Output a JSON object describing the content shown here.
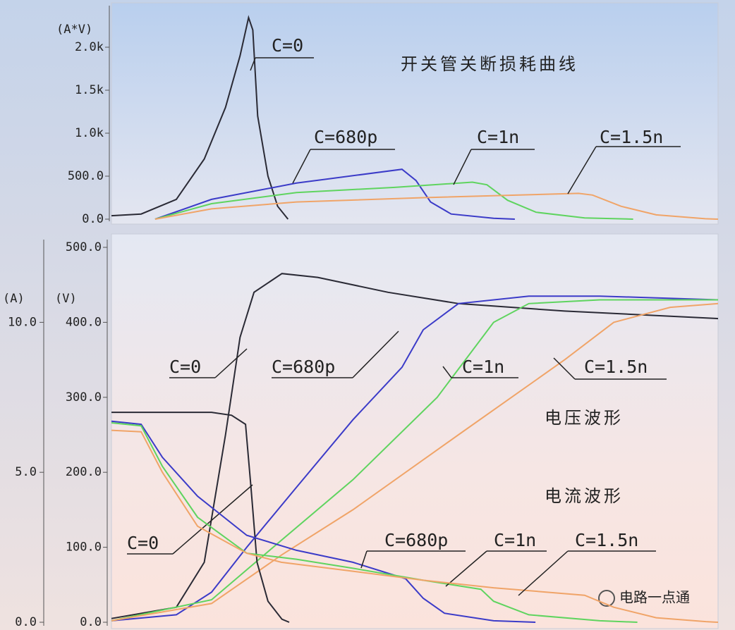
{
  "chart_data": [
    {
      "type": "line",
      "title": "开关管关断损耗曲线",
      "y_label": "(A*V)",
      "xlim": [
        0,
        100
      ],
      "ylim": [
        0,
        2500
      ],
      "yticks": [
        {
          "value": 0,
          "label": "0.0"
        },
        {
          "value": 500,
          "label": "500.0"
        },
        {
          "value": 1000,
          "label": "1.0k"
        },
        {
          "value": 1500,
          "label": "1.5k"
        },
        {
          "value": 2000,
          "label": "2.0k"
        }
      ],
      "series": [
        {
          "name": "C=0",
          "color": "#2a2a35",
          "x": [
            0,
            4.9,
            10.7,
            15.3,
            18.8,
            21.2,
            22.6,
            23.3,
            24.1,
            25.8,
            27.4,
            29.1
          ],
          "values": [
            40,
            60,
            230,
            700,
            1300,
            1900,
            2344,
            2200,
            1200,
            500,
            150,
            0
          ]
        },
        {
          "name": "C=680p",
          "color": "#3b3bc8",
          "x": [
            7.2,
            16.5,
            30.5,
            47.9,
            50.2,
            52.6,
            56,
            63,
            66.5
          ],
          "values": [
            0,
            230,
            420,
            580,
            450,
            200,
            60,
            10,
            0
          ]
        },
        {
          "name": "C=1n",
          "color": "#5fd45f",
          "x": [
            7.2,
            16.5,
            30.5,
            46.7,
            59.5,
            61.9,
            65.3,
            70,
            78,
            86
          ],
          "values": [
            0,
            180,
            310,
            370,
            430,
            400,
            220,
            80,
            15,
            0
          ]
        },
        {
          "name": "C=1.5n",
          "color": "#f0a468",
          "x": [
            7.2,
            16.5,
            30.5,
            51.4,
            77,
            79.3,
            84,
            89.8,
            97.9,
            100
          ],
          "values": [
            0,
            120,
            200,
            250,
            300,
            280,
            150,
            50,
            5,
            0
          ]
        }
      ]
    },
    {
      "type": "line",
      "annotations": [
        "电压波形",
        "电流波形"
      ],
      "y_label": "(V)",
      "y2_label": "(A)",
      "xlim": [
        0,
        100
      ],
      "ylim": [
        0,
        500
      ],
      "yticks": [
        {
          "value": 0,
          "label": "0.0"
        },
        {
          "value": 100,
          "label": "100.0"
        },
        {
          "value": 200,
          "label": "200.0"
        },
        {
          "value": 300,
          "label": "300.0"
        },
        {
          "value": 400,
          "label": "400.0"
        },
        {
          "value": 500,
          "label": "500.0"
        }
      ],
      "y2lim": [
        0,
        12.5
      ],
      "y2ticks": [
        {
          "value": 0,
          "label": "0.0"
        },
        {
          "value": 5,
          "label": "5.0"
        },
        {
          "value": 10,
          "label": "10.0"
        }
      ],
      "series": [
        {
          "name": "C=0",
          "color": "#2a2a35",
          "x": [
            0,
            10.7,
            15.3,
            18.8,
            21.2,
            23.5,
            28.1,
            34,
            45.6,
            57.2,
            74.7,
            100
          ],
          "values": [
            5,
            20,
            80,
            250,
            380,
            440,
            465,
            460,
            440,
            425,
            415,
            405
          ]
        },
        {
          "name": "C=680p",
          "color": "#3b3bc8",
          "x": [
            0,
            10.7,
            16.5,
            22.3,
            30.5,
            39.8,
            47.9,
            51.4,
            57.2,
            68.8,
            80.5,
            100
          ],
          "values": [
            2,
            10,
            40,
            100,
            180,
            270,
            340,
            390,
            425,
            435,
            435,
            430
          ]
        },
        {
          "name": "C=1n",
          "color": "#5fd45f",
          "x": [
            0,
            16.5,
            28.1,
            39.8,
            53.7,
            63,
            68.8,
            80.5,
            100
          ],
          "values": [
            2,
            30,
            110,
            190,
            300,
            400,
            425,
            430,
            430
          ]
        },
        {
          "name": "C=1.5n",
          "color": "#f0a468",
          "x": [
            0,
            16.5,
            28.1,
            39.8,
            57.2,
            74.7,
            82.8,
            92.1,
            100
          ],
          "values": [
            2,
            25,
            90,
            150,
            250,
            350,
            400,
            420,
            425
          ]
        },
        {
          "name": "C=0",
          "color": "#2a2a35",
          "axis": "y2",
          "x": [
            0,
            16.5,
            19.8,
            22.1,
            23,
            24,
            25.8,
            28.1,
            29.3
          ],
          "values": [
            7.0,
            7.0,
            6.9,
            6.6,
            4.5,
            2.0,
            0.7,
            0.1,
            0
          ]
        },
        {
          "name": "C=680p",
          "color": "#3b3bc8",
          "axis": "y2",
          "x": [
            0,
            4.9,
            8.4,
            14.2,
            22.3,
            30.5,
            39.8,
            48.5,
            51.4,
            54.9,
            63,
            69.9
          ],
          "values": [
            6.7,
            6.6,
            5.5,
            4.2,
            2.9,
            2.4,
            2.0,
            1.45,
            0.8,
            0.3,
            0.05,
            0
          ]
        },
        {
          "name": "C=1n",
          "color": "#5fd45f",
          "axis": "y2",
          "x": [
            0,
            4.9,
            8.4,
            14.2,
            22.3,
            30.5,
            39.8,
            51.4,
            60.9,
            63,
            68.8,
            80.5,
            86.7
          ],
          "values": [
            6.65,
            6.55,
            5.2,
            3.5,
            2.3,
            2.1,
            1.8,
            1.4,
            1.1,
            0.7,
            0.25,
            0.05,
            0
          ]
        },
        {
          "name": "C=1.5n",
          "color": "#f0a468",
          "axis": "y2",
          "x": [
            0,
            4.9,
            8.4,
            14.2,
            22.3,
            28,
            39.8,
            51.4,
            63,
            78,
            82.8,
            89.8,
            98,
            100
          ],
          "values": [
            6.4,
            6.35,
            5.0,
            3.2,
            2.3,
            2.0,
            1.7,
            1.4,
            1.15,
            0.9,
            0.5,
            0.15,
            0.02,
            0
          ]
        }
      ]
    }
  ],
  "watermark": "电路一点通"
}
